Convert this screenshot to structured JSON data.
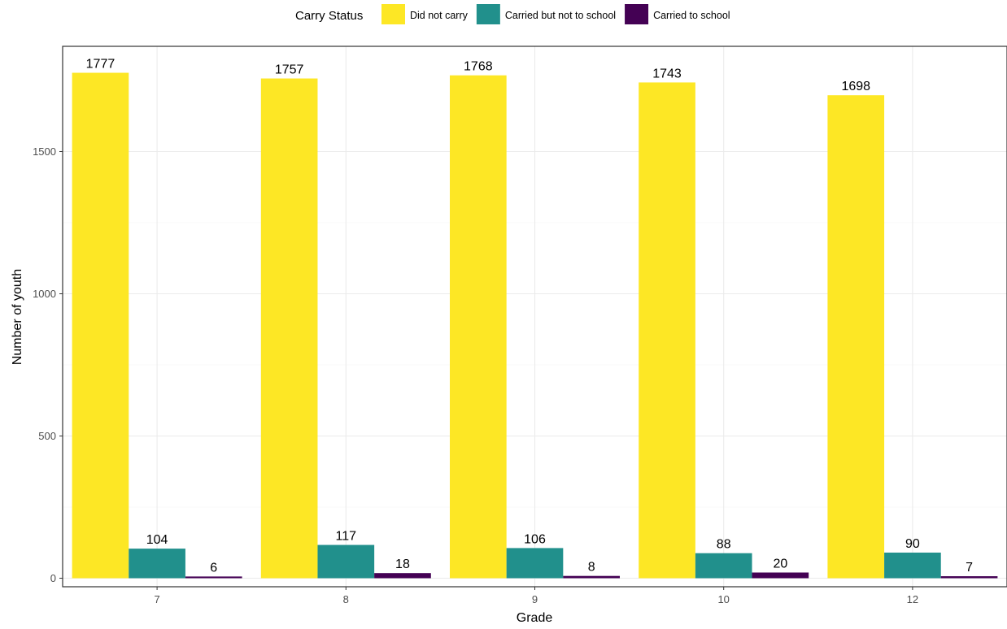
{
  "chart_data": {
    "type": "bar",
    "categories": [
      "7",
      "8",
      "9",
      "10",
      "12"
    ],
    "series": [
      {
        "name": "Did not carry",
        "color": "#FDE725",
        "values": [
          1777,
          1757,
          1768,
          1743,
          1698
        ]
      },
      {
        "name": "Carried but not to school",
        "color": "#21908C",
        "values": [
          104,
          117,
          106,
          88,
          90
        ]
      },
      {
        "name": "Carried to school",
        "color": "#440154",
        "values": [
          6,
          18,
          8,
          20,
          7
        ]
      }
    ],
    "xlabel": "Grade",
    "ylabel": "Number of youth",
    "legend_title": "Carry Status",
    "legend_position": "top",
    "yticks": [
      0,
      500,
      1000,
      1500
    ],
    "ylim": [
      -30,
      1870
    ],
    "grid": true
  }
}
